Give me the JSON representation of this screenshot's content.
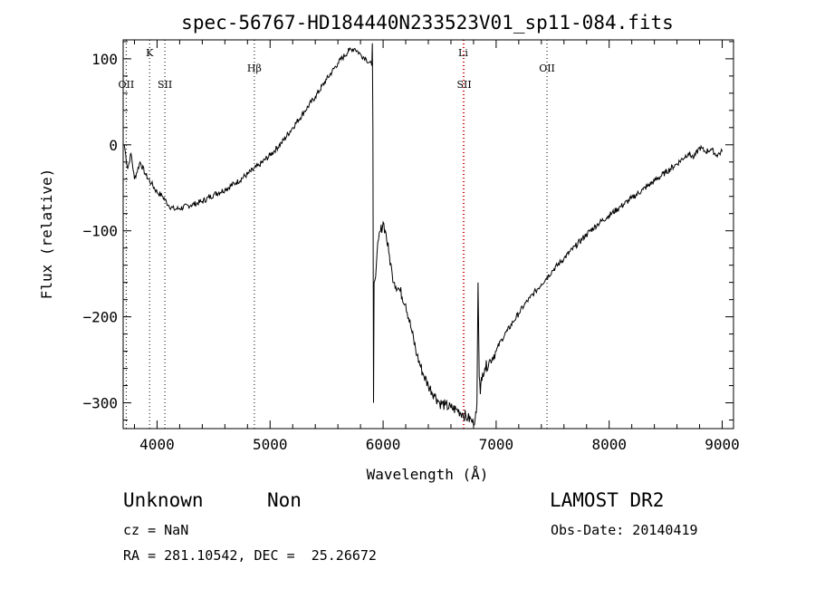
{
  "chart_data": {
    "type": "line",
    "title": "spec-56767-HD184440N233523V01_sp11-084.fits",
    "xlabel": "Wavelength (Å)",
    "ylabel": "Flux (relative)",
    "xlim": [
      3700,
      9100
    ],
    "ylim": [
      -330,
      122
    ],
    "x_ticks": [
      4000,
      5000,
      6000,
      7000,
      8000,
      9000
    ],
    "x_tick_labels": [
      "4000",
      "5000",
      "6000",
      "7000",
      "8000",
      "9000"
    ],
    "y_ticks": [
      -300,
      -200,
      -100,
      0,
      100
    ],
    "y_tick_labels": [
      "−300",
      "−200",
      "−100",
      "0",
      "100"
    ],
    "grid": false,
    "line_markers": [
      {
        "label": "OII",
        "x": 3727,
        "color": "#000000",
        "row": "low"
      },
      {
        "label": "K",
        "x": 3934,
        "color": "#000000",
        "row": "high"
      },
      {
        "label": "SII",
        "x": 4069,
        "color": "#000000",
        "row": "low"
      },
      {
        "label": "Hβ",
        "x": 4861,
        "color": "#000000",
        "row": "mid"
      },
      {
        "label": "Li",
        "x": 6708,
        "color": "#cc0000",
        "row": "high"
      },
      {
        "label": "SII",
        "x": 6717,
        "color": "#cc0000",
        "row": "low"
      },
      {
        "label": "OII",
        "x": 7450,
        "color": "#000000",
        "row": "mid"
      }
    ],
    "series": [
      {
        "x": [
          3710,
          3740,
          3770,
          3800,
          3850,
          3900,
          3950,
          4000,
          4050,
          4100,
          4150,
          4200,
          4300,
          4400,
          4500,
          4600,
          4700,
          4800,
          4900,
          5000,
          5100,
          5200,
          5300,
          5400,
          5500,
          5600,
          5700,
          5750,
          5800,
          5850,
          5900,
          5905,
          5910,
          5915,
          5920,
          5940,
          5960,
          6000,
          6020,
          6050,
          6080,
          6100,
          6150,
          6200,
          6250,
          6300,
          6350,
          6400,
          6450,
          6500,
          6550,
          6600,
          6650,
          6700,
          6750,
          6780,
          6800,
          6820,
          6830,
          6840,
          6845,
          6850,
          6860,
          6870,
          6880,
          6900,
          6950,
          7000,
          7050,
          7100,
          7150,
          7200,
          7250,
          7300,
          7350,
          7400,
          7450,
          7500,
          7600,
          7700,
          7800,
          7900,
          8000,
          8100,
          8200,
          8300,
          8400,
          8500,
          8600,
          8700,
          8750,
          8800,
          8850,
          8900,
          8950,
          9000
        ],
        "y": [
          0,
          -28,
          -10,
          -40,
          -20,
          -35,
          -45,
          -55,
          -60,
          -70,
          -75,
          -74,
          -70,
          -66,
          -58,
          -52,
          -44,
          -34,
          -24,
          -12,
          2,
          20,
          38,
          56,
          76,
          95,
          110,
          112,
          105,
          100,
          92,
          118,
          20,
          -300,
          -160,
          -140,
          -110,
          -90,
          -100,
          -125,
          -150,
          -160,
          -170,
          -185,
          -215,
          -245,
          -265,
          -280,
          -290,
          -300,
          -303,
          -306,
          -308,
          -312,
          -318,
          -320,
          -325,
          -310,
          -300,
          -160,
          -210,
          -270,
          -290,
          -270,
          -265,
          -260,
          -250,
          -240,
          -226,
          -216,
          -206,
          -196,
          -186,
          -178,
          -170,
          -162,
          -154,
          -146,
          -132,
          -118,
          -104,
          -92,
          -82,
          -72,
          -62,
          -52,
          -42,
          -32,
          -22,
          -10,
          -15,
          -3,
          -8,
          -5,
          -12,
          -8
        ]
      }
    ]
  },
  "info": {
    "object_class": "Unknown",
    "object_subclass": "Non",
    "survey": "LAMOST DR2",
    "redshift": "cz = NaN",
    "obs_date": "Obs-Date: 20140419",
    "coords": "RA = 281.10542, DEC =  25.26672"
  }
}
